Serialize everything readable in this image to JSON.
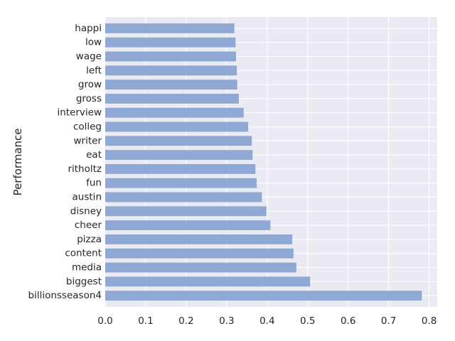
{
  "chart_data": {
    "type": "bar",
    "orientation": "horizontal",
    "title": "",
    "xlabel": "",
    "ylabel": "Performance",
    "categories": [
      "billionsseason4",
      "biggest",
      "media",
      "content",
      "pizza",
      "cheer",
      "disney",
      "austin",
      "fun",
      "ritholtz",
      "eat",
      "writer",
      "colleg",
      "interview",
      "gross",
      "grow",
      "left",
      "wage",
      "low",
      "happi"
    ],
    "values": [
      0.782,
      0.506,
      0.472,
      0.465,
      0.462,
      0.408,
      0.398,
      0.387,
      0.374,
      0.371,
      0.364,
      0.362,
      0.353,
      0.342,
      0.33,
      0.326,
      0.325,
      0.323,
      0.322,
      0.319
    ],
    "xlim": [
      0.0,
      0.82
    ],
    "xticks": [
      "0.0",
      "0.1",
      "0.2",
      "0.3",
      "0.4",
      "0.5",
      "0.6",
      "0.7",
      "0.8"
    ],
    "grid": true,
    "bar_color": "#8fa8d4",
    "background_color": "#eaeaf2"
  }
}
